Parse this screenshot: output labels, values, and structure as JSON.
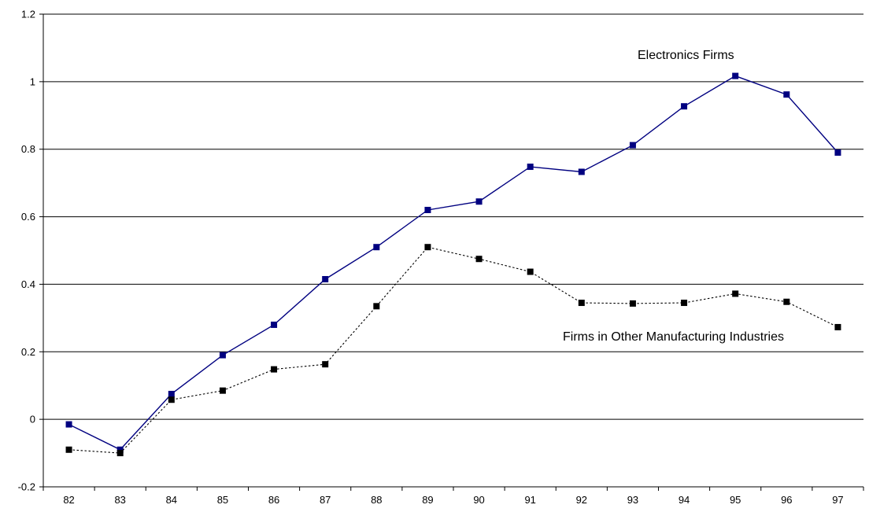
{
  "chart_data": {
    "type": "line",
    "title": "",
    "xlabel": "",
    "ylabel": "",
    "categories": [
      "82",
      "83",
      "84",
      "85",
      "86",
      "87",
      "88",
      "89",
      "90",
      "91",
      "92",
      "93",
      "94",
      "95",
      "96",
      "97"
    ],
    "ylim": [
      -0.2,
      1.2
    ],
    "yticks": [
      "-0.2",
      "0",
      "0.2",
      "0.4",
      "0.6",
      "0.8",
      "1",
      "1.2"
    ],
    "grid": "horizontal",
    "legend": "none",
    "series": [
      {
        "name": "Electronics Firms",
        "style": "solid",
        "color": "#000080",
        "values": [
          -0.015,
          -0.09,
          0.075,
          0.19,
          0.28,
          0.415,
          0.51,
          0.62,
          0.645,
          0.748,
          0.733,
          0.812,
          0.927,
          1.017,
          0.962,
          0.79
        ]
      },
      {
        "name": "Firms in Other Manufacturing Industries",
        "style": "dotted",
        "color": "#000000",
        "values": [
          -0.09,
          -0.1,
          0.058,
          0.085,
          0.148,
          0.163,
          0.335,
          0.51,
          0.475,
          0.437,
          0.345,
          0.343,
          0.345,
          0.372,
          0.348,
          0.273
        ]
      }
    ]
  }
}
